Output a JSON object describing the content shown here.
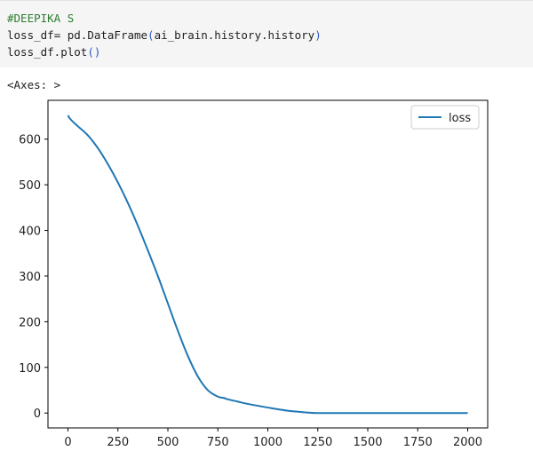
{
  "code": {
    "line1": "#DEEPIKA S",
    "line2_var": "loss_df",
    "line2_eq": "= pd.DataFrame",
    "line2_paren_open": "(",
    "line2_arg": "ai_brain.history.history",
    "line2_paren_close": ")",
    "line3_obj": "loss_df.plot",
    "line3_call": "()"
  },
  "output": {
    "repr": "<Axes: >"
  },
  "colors": {
    "line": "#1f77b4"
  },
  "chart_data": {
    "type": "line",
    "series": [
      {
        "name": "loss",
        "x": [
          0,
          10,
          25,
          50,
          100,
          150,
          200,
          250,
          300,
          350,
          400,
          450,
          500,
          550,
          600,
          650,
          700,
          750,
          780,
          800,
          850,
          900,
          1000,
          1100,
          1200,
          1250,
          1300,
          1400,
          1500,
          1600,
          1700,
          1800,
          1900,
          2000
        ],
        "values": [
          652,
          645,
          638,
          628,
          608,
          580,
          545,
          505,
          460,
          410,
          356,
          300,
          240,
          180,
          125,
          80,
          50,
          36,
          33,
          30,
          25,
          20,
          12,
          5,
          1,
          0,
          0,
          0,
          0,
          0,
          0,
          0,
          0,
          0
        ]
      }
    ],
    "xticks": [
      0,
      250,
      500,
      750,
      1000,
      1250,
      1500,
      1750,
      2000
    ],
    "yticks": [
      0,
      100,
      200,
      300,
      400,
      500,
      600
    ],
    "xlim": [
      -100,
      2100
    ],
    "ylim": [
      -32.6,
      685
    ],
    "grid": false,
    "legend": "top-right"
  }
}
